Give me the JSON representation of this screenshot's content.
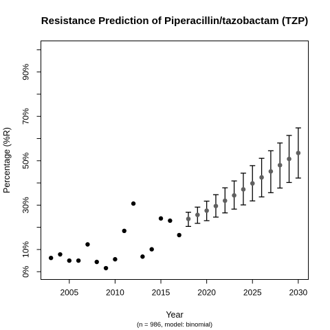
{
  "chart_data": {
    "type": "scatter",
    "title": "Resistance Prediction of Piperacillin/tazobactam (TZP)",
    "subtitle": "(n = 986, model: binomial)",
    "xlabel": "Year",
    "ylabel": "Percentage (%R)",
    "xlim": [
      2001.9,
      2031.1
    ],
    "ylim": [
      -3.5,
      104
    ],
    "grid": false,
    "legend": "none",
    "x_ticks": [
      2005,
      2010,
      2015,
      2020,
      2025,
      2030
    ],
    "x_tick_labels": [
      "2005",
      "2010",
      "2015",
      "2020",
      "2025",
      "2030"
    ],
    "y_ticks": [
      0,
      10,
      20,
      30,
      40,
      50,
      60,
      70,
      80,
      90,
      100
    ],
    "y_tick_labels": [
      "0%",
      "10%",
      "",
      "30%",
      "",
      "50%",
      "",
      "70%",
      "",
      "90%",
      ""
    ],
    "colors": {
      "observed": "#000000",
      "predicted": "#606060",
      "error_bar": "#000000"
    },
    "observed": {
      "x": [
        2003,
        2004,
        2005,
        2006,
        2007,
        2008,
        2009,
        2010,
        2011,
        2012,
        2013,
        2014,
        2015,
        2016,
        2017
      ],
      "y": [
        6.2,
        7.8,
        5.0,
        5.0,
        12.3,
        4.4,
        1.6,
        5.6,
        18.4,
        30.7,
        6.8,
        10.1,
        24.0,
        23.0,
        16.5
      ]
    },
    "predicted": {
      "x": [
        2018,
        2019,
        2020,
        2021,
        2022,
        2023,
        2024,
        2025,
        2026,
        2027,
        2028,
        2029,
        2030
      ],
      "y": [
        23.8,
        25.6,
        27.5,
        29.6,
        32.0,
        34.4,
        37.1,
        39.8,
        42.5,
        45.2,
        48.0,
        50.8,
        53.5
      ],
      "lower": [
        20.4,
        21.8,
        23.0,
        24.6,
        26.5,
        28.2,
        30.1,
        31.9,
        33.7,
        35.6,
        37.7,
        40.2,
        42.2
      ],
      "upper": [
        26.8,
        29.1,
        31.8,
        34.7,
        37.8,
        40.9,
        44.4,
        47.8,
        51.1,
        54.5,
        58.0,
        61.4,
        64.8
      ]
    }
  }
}
